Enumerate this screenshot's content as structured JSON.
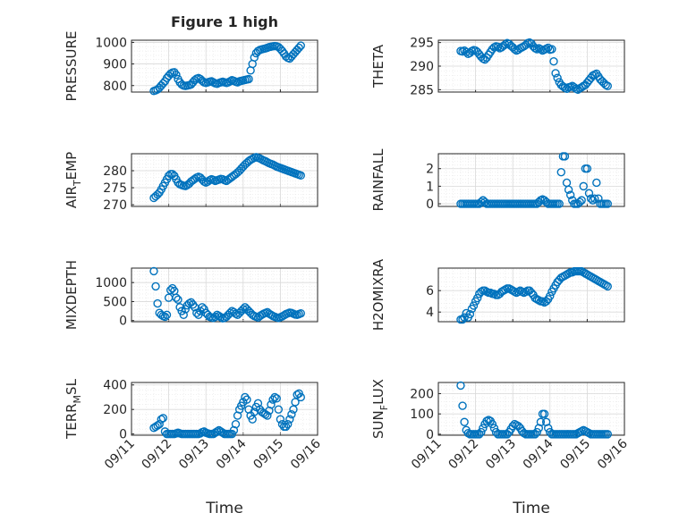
{
  "figure": {
    "title": "Figure 1 high",
    "xlabel": "Time",
    "x_tick_labels": [
      "09/11",
      "09/12",
      "09/13",
      "09/14",
      "09/15",
      "09/16"
    ],
    "marker_color": "#0072BD"
  },
  "chart_data": [
    {
      "type": "scatter",
      "ylabel": "PRESSURE",
      "xlim": [
        0,
        5
      ],
      "ylim": [
        770,
        1010
      ],
      "yticks": [
        800,
        900,
        1000
      ],
      "x": [
        0.6,
        0.65,
        0.7,
        0.75,
        0.8,
        0.85,
        0.9,
        0.95,
        1.0,
        1.05,
        1.1,
        1.15,
        1.2,
        1.25,
        1.3,
        1.35,
        1.4,
        1.45,
        1.5,
        1.55,
        1.6,
        1.65,
        1.7,
        1.75,
        1.8,
        1.85,
        1.9,
        1.95,
        2.0,
        2.05,
        2.1,
        2.15,
        2.2,
        2.25,
        2.3,
        2.35,
        2.4,
        2.45,
        2.5,
        2.55,
        2.6,
        2.65,
        2.7,
        2.75,
        2.8,
        2.85,
        2.9,
        2.95,
        3.0,
        3.05,
        3.1,
        3.15,
        3.2,
        3.25,
        3.3,
        3.35,
        3.4,
        3.45,
        3.5,
        3.55,
        3.6,
        3.65,
        3.7,
        3.75,
        3.8,
        3.85,
        3.9,
        3.95,
        4.0,
        4.05,
        4.1,
        4.15,
        4.2,
        4.25,
        4.3,
        4.35,
        4.4,
        4.45,
        4.5,
        4.55
      ],
      "y": [
        775,
        778,
        782,
        790,
        800,
        810,
        820,
        835,
        845,
        855,
        860,
        862,
        850,
        830,
        815,
        805,
        800,
        798,
        800,
        802,
        805,
        815,
        825,
        832,
        835,
        830,
        822,
        815,
        812,
        815,
        818,
        820,
        815,
        810,
        808,
        812,
        815,
        818,
        815,
        812,
        815,
        820,
        825,
        822,
        818,
        815,
        820,
        822,
        824,
        826,
        828,
        830,
        870,
        900,
        930,
        950,
        960,
        965,
        968,
        970,
        972,
        975,
        978,
        980,
        982,
        983,
        982,
        978,
        970,
        960,
        948,
        935,
        928,
        925,
        935,
        945,
        955,
        965,
        975,
        985
      ],
      "note": "x in days after 09/11"
    },
    {
      "type": "scatter",
      "ylabel": "THETA",
      "xlim": [
        0,
        5
      ],
      "ylim": [
        284.5,
        295.5
      ],
      "yticks": [
        285,
        290,
        295
      ],
      "x": [
        0.6,
        0.65,
        0.7,
        0.75,
        0.8,
        0.85,
        0.9,
        0.95,
        1.0,
        1.05,
        1.1,
        1.15,
        1.2,
        1.25,
        1.3,
        1.35,
        1.4,
        1.45,
        1.5,
        1.55,
        1.6,
        1.65,
        1.7,
        1.75,
        1.8,
        1.85,
        1.9,
        1.95,
        2.0,
        2.05,
        2.1,
        2.15,
        2.2,
        2.25,
        2.3,
        2.35,
        2.4,
        2.45,
        2.5,
        2.55,
        2.6,
        2.65,
        2.7,
        2.75,
        2.8,
        2.85,
        2.9,
        2.95,
        3.0,
        3.05,
        3.1,
        3.15,
        3.2,
        3.25,
        3.3,
        3.35,
        3.4,
        3.45,
        3.5,
        3.55,
        3.6,
        3.65,
        3.7,
        3.75,
        3.8,
        3.85,
        3.9,
        3.95,
        4.0,
        4.05,
        4.1,
        4.15,
        4.2,
        4.25,
        4.3,
        4.35,
        4.4,
        4.45,
        4.5,
        4.55
      ],
      "y": [
        293.2,
        293.1,
        293.3,
        293.0,
        292.6,
        292.8,
        293.2,
        293.4,
        293.3,
        293.0,
        292.5,
        292.0,
        291.6,
        291.4,
        291.8,
        292.4,
        293.0,
        293.6,
        294.0,
        294.2,
        294.1,
        293.8,
        294.0,
        294.3,
        294.6,
        294.9,
        294.7,
        294.3,
        294.0,
        293.6,
        293.3,
        293.5,
        293.8,
        294.0,
        294.2,
        294.5,
        294.9,
        295.0,
        294.8,
        294.2,
        293.8,
        293.6,
        293.8,
        293.6,
        293.3,
        293.5,
        293.7,
        293.9,
        293.5,
        293.6,
        291.0,
        288.5,
        287.5,
        286.6,
        286.0,
        285.7,
        285.4,
        285.2,
        285.5,
        285.6,
        285.8,
        285.5,
        285.2,
        285.0,
        285.3,
        285.5,
        285.8,
        286.0,
        286.5,
        287.0,
        287.5,
        288.0,
        288.2,
        288.4,
        287.8,
        287.2,
        286.8,
        286.4,
        286.0,
        285.8
      ],
      "note": "x in days after 09/11"
    },
    {
      "type": "scatter",
      "ylabel": "AIR_TEMP",
      "xlim": [
        0,
        5
      ],
      "ylim": [
        269.5,
        285
      ],
      "yticks": [
        270,
        275,
        280
      ],
      "x": [
        0.6,
        0.65,
        0.7,
        0.75,
        0.8,
        0.85,
        0.9,
        0.95,
        1.0,
        1.05,
        1.1,
        1.15,
        1.2,
        1.25,
        1.3,
        1.35,
        1.4,
        1.45,
        1.5,
        1.55,
        1.6,
        1.65,
        1.7,
        1.75,
        1.8,
        1.85,
        1.9,
        1.95,
        2.0,
        2.05,
        2.1,
        2.15,
        2.2,
        2.25,
        2.3,
        2.35,
        2.4,
        2.45,
        2.5,
        2.55,
        2.6,
        2.65,
        2.7,
        2.75,
        2.8,
        2.85,
        2.9,
        2.95,
        3.0,
        3.05,
        3.1,
        3.15,
        3.2,
        3.25,
        3.3,
        3.35,
        3.4,
        3.45,
        3.5,
        3.55,
        3.6,
        3.65,
        3.7,
        3.75,
        3.8,
        3.85,
        3.9,
        3.95,
        4.0,
        4.05,
        4.1,
        4.15,
        4.2,
        4.25,
        4.3,
        4.35,
        4.4,
        4.45,
        4.5,
        4.55
      ],
      "y": [
        272.0,
        272.5,
        273.0,
        273.6,
        274.5,
        275.5,
        276.5,
        277.5,
        278.5,
        279.0,
        279.0,
        278.5,
        277.5,
        276.5,
        276.0,
        275.8,
        275.6,
        275.5,
        275.8,
        276.2,
        276.8,
        277.2,
        277.6,
        278.0,
        278.2,
        278.0,
        277.4,
        276.8,
        276.5,
        276.8,
        277.2,
        277.5,
        277.3,
        277.0,
        277.2,
        277.4,
        277.6,
        277.5,
        277.2,
        277.0,
        277.4,
        277.8,
        278.2,
        278.6,
        279.0,
        279.5,
        280.0,
        280.6,
        281.2,
        281.8,
        282.3,
        282.8,
        283.2,
        283.5,
        283.8,
        284.0,
        283.8,
        283.6,
        283.3,
        283.0,
        282.8,
        282.5,
        282.2,
        282.0,
        281.8,
        281.5,
        281.2,
        281.0,
        280.8,
        280.6,
        280.4,
        280.2,
        280.0,
        279.8,
        279.6,
        279.4,
        279.2,
        279.0,
        278.8,
        278.6
      ],
      "note": "x in days after 09/11"
    },
    {
      "type": "scatter",
      "ylabel": "RAINFALL",
      "xlim": [
        0,
        5
      ],
      "ylim": [
        -0.15,
        2.85
      ],
      "yticks": [
        0,
        1,
        2
      ],
      "x": [
        0.6,
        0.65,
        0.7,
        0.75,
        0.8,
        0.85,
        0.9,
        0.95,
        1.0,
        1.05,
        1.1,
        1.15,
        1.2,
        1.25,
        1.3,
        1.35,
        1.4,
        1.45,
        1.5,
        1.55,
        1.6,
        1.65,
        1.7,
        1.75,
        1.8,
        1.85,
        1.9,
        1.95,
        2.0,
        2.05,
        2.1,
        2.15,
        2.2,
        2.25,
        2.3,
        2.35,
        2.4,
        2.45,
        2.5,
        2.55,
        2.6,
        2.65,
        2.7,
        2.75,
        2.8,
        2.85,
        2.9,
        2.95,
        3.0,
        3.05,
        3.1,
        3.15,
        3.2,
        3.25,
        3.3,
        3.35,
        3.4,
        3.45,
        3.5,
        3.55,
        3.6,
        3.65,
        3.7,
        3.75,
        3.8,
        3.85,
        3.9,
        3.95,
        4.0,
        4.05,
        4.1,
        4.15,
        4.2,
        4.25,
        4.3,
        4.35,
        4.4,
        4.45,
        4.5,
        4.55
      ],
      "y": [
        0,
        0,
        0,
        0,
        0,
        0,
        0,
        0,
        0,
        0,
        0,
        0.1,
        0.2,
        0.1,
        0,
        0,
        0,
        0,
        0,
        0,
        0,
        0,
        0,
        0,
        0,
        0,
        0,
        0,
        0,
        0,
        0,
        0,
        0,
        0,
        0,
        0,
        0,
        0,
        0,
        0,
        0,
        0,
        0.1,
        0.2,
        0.25,
        0.2,
        0.1,
        0,
        0,
        0,
        0,
        0,
        0,
        0,
        1.8,
        2.7,
        2.7,
        1.2,
        0.8,
        0.5,
        0.2,
        0,
        0,
        0,
        0.1,
        0.2,
        1.0,
        2.0,
        2.0,
        0.6,
        0.3,
        0.2,
        0.3,
        1.2,
        0.3,
        0,
        0,
        0,
        0,
        0
      ],
      "note": "x in days after 09/11"
    },
    {
      "type": "scatter",
      "ylabel": "MIXDEPTH",
      "xlim": [
        0,
        5
      ],
      "ylim": [
        -30,
        1380
      ],
      "yticks": [
        0,
        500,
        1000
      ],
      "x": [
        0.6,
        0.65,
        0.7,
        0.75,
        0.8,
        0.85,
        0.9,
        0.95,
        1.0,
        1.05,
        1.1,
        1.15,
        1.2,
        1.25,
        1.3,
        1.35,
        1.4,
        1.45,
        1.5,
        1.55,
        1.6,
        1.65,
        1.7,
        1.75,
        1.8,
        1.85,
        1.9,
        1.95,
        2.0,
        2.05,
        2.1,
        2.15,
        2.2,
        2.25,
        2.3,
        2.35,
        2.4,
        2.45,
        2.5,
        2.55,
        2.6,
        2.65,
        2.7,
        2.75,
        2.8,
        2.85,
        2.9,
        2.95,
        3.0,
        3.05,
        3.1,
        3.15,
        3.2,
        3.25,
        3.3,
        3.35,
        3.4,
        3.45,
        3.5,
        3.55,
        3.6,
        3.65,
        3.7,
        3.75,
        3.8,
        3.85,
        3.9,
        3.95,
        4.0,
        4.05,
        4.1,
        4.15,
        4.2,
        4.25,
        4.3,
        4.35,
        4.4,
        4.45,
        4.5,
        4.55
      ],
      "y": [
        1300,
        900,
        450,
        200,
        150,
        120,
        100,
        150,
        600,
        800,
        850,
        780,
        600,
        550,
        350,
        250,
        150,
        300,
        400,
        450,
        480,
        420,
        350,
        200,
        150,
        250,
        350,
        300,
        200,
        150,
        100,
        80,
        70,
        100,
        150,
        120,
        90,
        60,
        70,
        100,
        150,
        200,
        250,
        220,
        180,
        150,
        200,
        250,
        300,
        350,
        300,
        250,
        200,
        150,
        120,
        100,
        80,
        120,
        150,
        180,
        200,
        220,
        180,
        150,
        120,
        100,
        80,
        70,
        90,
        110,
        140,
        170,
        190,
        210,
        200,
        180,
        160,
        150,
        170,
        190
      ],
      "note": "x in days after 09/11"
    },
    {
      "type": "scatter",
      "ylabel": "H2OMIXRA",
      "xlim": [
        0,
        5
      ],
      "ylim": [
        3.1,
        8.1
      ],
      "yticks": [
        4,
        6
      ],
      "x": [
        0.6,
        0.65,
        0.7,
        0.75,
        0.8,
        0.85,
        0.9,
        0.95,
        1.0,
        1.05,
        1.1,
        1.15,
        1.2,
        1.25,
        1.3,
        1.35,
        1.4,
        1.45,
        1.5,
        1.55,
        1.6,
        1.65,
        1.7,
        1.75,
        1.8,
        1.85,
        1.9,
        1.95,
        2.0,
        2.05,
        2.1,
        2.15,
        2.2,
        2.25,
        2.3,
        2.35,
        2.4,
        2.45,
        2.5,
        2.55,
        2.6,
        2.65,
        2.7,
        2.75,
        2.8,
        2.85,
        2.9,
        2.95,
        3.0,
        3.05,
        3.1,
        3.15,
        3.2,
        3.25,
        3.3,
        3.35,
        3.4,
        3.45,
        3.5,
        3.55,
        3.6,
        3.65,
        3.7,
        3.75,
        3.8,
        3.85,
        3.9,
        3.95,
        4.0,
        4.05,
        4.1,
        4.15,
        4.2,
        4.25,
        4.3,
        4.35,
        4.4,
        4.45,
        4.5,
        4.55
      ],
      "y": [
        3.3,
        3.3,
        3.5,
        3.9,
        3.5,
        3.8,
        4.3,
        4.6,
        5.0,
        5.3,
        5.7,
        5.9,
        6.0,
        6.0,
        5.9,
        5.8,
        5.8,
        5.7,
        5.7,
        5.6,
        5.6,
        5.7,
        5.9,
        6.0,
        6.1,
        6.2,
        6.2,
        6.1,
        6.0,
        5.9,
        5.8,
        5.9,
        6.0,
        5.9,
        5.8,
        5.9,
        6.0,
        6.0,
        5.8,
        5.6,
        5.3,
        5.2,
        5.1,
        5.0,
        5.0,
        4.9,
        5.0,
        5.2,
        5.5,
        5.9,
        6.2,
        6.5,
        6.8,
        7.0,
        7.2,
        7.3,
        7.4,
        7.5,
        7.6,
        7.7,
        7.7,
        7.8,
        7.8,
        7.8,
        7.8,
        7.8,
        7.7,
        7.6,
        7.5,
        7.4,
        7.3,
        7.2,
        7.1,
        7.0,
        6.9,
        6.8,
        6.7,
        6.6,
        6.5,
        6.4
      ],
      "note": "x in days after 09/11"
    },
    {
      "type": "scatter",
      "ylabel": "TERR_MSL",
      "xlim": [
        0,
        5
      ],
      "ylim": [
        -10,
        420
      ],
      "yticks": [
        0,
        200,
        400
      ],
      "x": [
        0.6,
        0.65,
        0.7,
        0.75,
        0.8,
        0.85,
        0.9,
        0.95,
        1.0,
        1.05,
        1.1,
        1.15,
        1.2,
        1.25,
        1.3,
        1.35,
        1.4,
        1.45,
        1.5,
        1.55,
        1.6,
        1.65,
        1.7,
        1.75,
        1.8,
        1.85,
        1.9,
        1.95,
        2.0,
        2.05,
        2.1,
        2.15,
        2.2,
        2.25,
        2.3,
        2.35,
        2.4,
        2.45,
        2.5,
        2.55,
        2.6,
        2.65,
        2.7,
        2.75,
        2.8,
        2.85,
        2.9,
        2.95,
        3.0,
        3.05,
        3.1,
        3.15,
        3.2,
        3.25,
        3.3,
        3.35,
        3.4,
        3.45,
        3.5,
        3.55,
        3.6,
        3.65,
        3.7,
        3.75,
        3.8,
        3.85,
        3.9,
        3.95,
        4.0,
        4.05,
        4.1,
        4.15,
        4.2,
        4.25,
        4.3,
        4.35,
        4.4,
        4.45,
        4.5,
        4.55
      ],
      "y": [
        50,
        60,
        70,
        80,
        120,
        130,
        20,
        0,
        0,
        0,
        0,
        0,
        5,
        10,
        5,
        0,
        0,
        0,
        0,
        0,
        0,
        0,
        0,
        0,
        0,
        5,
        15,
        20,
        10,
        5,
        0,
        0,
        0,
        10,
        20,
        30,
        20,
        10,
        0,
        0,
        0,
        0,
        0,
        30,
        80,
        150,
        200,
        230,
        260,
        300,
        280,
        200,
        150,
        120,
        180,
        220,
        250,
        200,
        180,
        170,
        160,
        150,
        190,
        240,
        280,
        300,
        290,
        200,
        120,
        80,
        60,
        60,
        80,
        120,
        160,
        200,
        260,
        320,
        330,
        300
      ],
      "note": "x in days after 09/11"
    },
    {
      "type": "scatter",
      "ylabel": "SUN_FLUX",
      "xlim": [
        0,
        5
      ],
      "ylim": [
        -5,
        255
      ],
      "yticks": [
        0,
        100,
        200
      ],
      "x": [
        0.6,
        0.65,
        0.7,
        0.75,
        0.8,
        0.85,
        0.9,
        0.95,
        1.0,
        1.05,
        1.1,
        1.15,
        1.2,
        1.25,
        1.3,
        1.35,
        1.4,
        1.45,
        1.5,
        1.55,
        1.6,
        1.65,
        1.7,
        1.75,
        1.8,
        1.85,
        1.9,
        1.95,
        2.0,
        2.05,
        2.1,
        2.15,
        2.2,
        2.25,
        2.3,
        2.35,
        2.4,
        2.45,
        2.5,
        2.55,
        2.6,
        2.65,
        2.7,
        2.75,
        2.8,
        2.85,
        2.9,
        2.95,
        3.0,
        3.05,
        3.1,
        3.15,
        3.2,
        3.25,
        3.3,
        3.35,
        3.4,
        3.45,
        3.5,
        3.55,
        3.6,
        3.65,
        3.7,
        3.75,
        3.8,
        3.85,
        3.9,
        3.95,
        4.0,
        4.05,
        4.1,
        4.15,
        4.2,
        4.25,
        4.3,
        4.35,
        4.4,
        4.45,
        4.5,
        4.55
      ],
      "y": [
        240,
        140,
        60,
        20,
        5,
        0,
        0,
        0,
        0,
        0,
        0,
        10,
        30,
        50,
        65,
        70,
        65,
        50,
        30,
        10,
        0,
        0,
        0,
        0,
        0,
        0,
        10,
        25,
        40,
        50,
        45,
        40,
        30,
        15,
        5,
        0,
        0,
        0,
        0,
        0,
        0,
        10,
        30,
        60,
        100,
        100,
        60,
        30,
        10,
        0,
        0,
        0,
        0,
        0,
        0,
        0,
        0,
        0,
        0,
        0,
        0,
        0,
        0,
        5,
        10,
        15,
        20,
        15,
        10,
        5,
        0,
        0,
        0,
        0,
        0,
        0,
        0,
        0,
        0,
        0
      ],
      "note": "x in days after 09/11"
    }
  ]
}
